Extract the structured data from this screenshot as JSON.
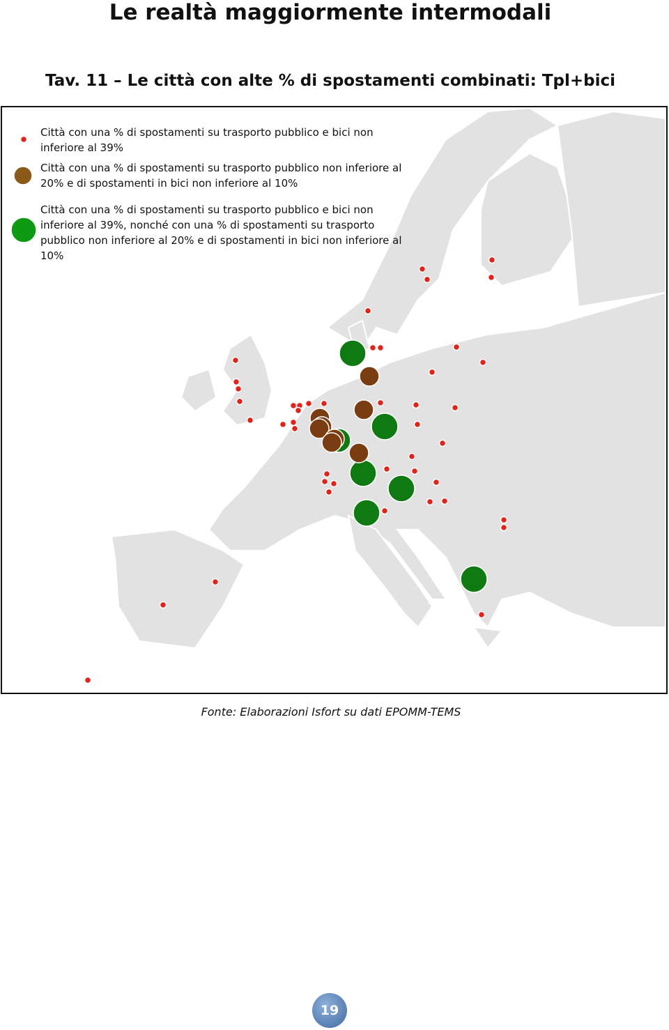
{
  "header": {
    "title": "Le realtà maggiormente intermodali"
  },
  "figure": {
    "title": "Tav. 11 – Le città con alte % di spostamenti combinati: Tpl+bici",
    "legend": {
      "items": [
        {
          "label": "Città con una % di spostamenti su trasporto pubblico e bici non inferiore al 39%"
        },
        {
          "label": "Città con una % di spostamenti su trasporto pubblico non inferiore al 20% e di spostamenti in bici non inferiore al 10%"
        },
        {
          "label": "Città con una % di spostamenti su trasporto pubblico e bici non inferiore al 39%, nonché con una % di spostamenti su trasporto pubblico non inferiore al 20% e di spostamenti in bici non inferiore al 10%"
        }
      ]
    },
    "source": "Fonte: Elaborazioni Isfort su dati EPOMM-TEMS"
  },
  "footer": {
    "page_number": "19"
  }
}
